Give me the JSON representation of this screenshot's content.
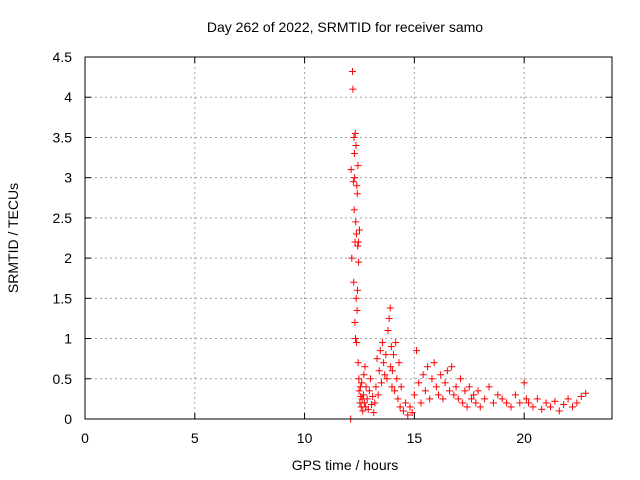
{
  "chart_data": {
    "type": "scatter",
    "title": "Day 262 of 2022, SRMTID for receiver samo",
    "xlabel": "GPS time / hours",
    "ylabel": "SRMTID / TECUs",
    "xlim": [
      0,
      24
    ],
    "ylim": [
      0,
      4.5
    ],
    "xticks": [
      0,
      5,
      10,
      15,
      20
    ],
    "yticks": [
      0,
      0.5,
      1,
      1.5,
      2,
      2.5,
      3,
      3.5,
      4,
      4.5
    ],
    "grid": true,
    "legend": "none",
    "marker": "plus",
    "color": "#ff0000",
    "series": [
      {
        "x": [
          12.1,
          12.12,
          12.15,
          12.18,
          12.2,
          12.22,
          12.24,
          12.25,
          12.26,
          12.27,
          12.28,
          12.29,
          12.3,
          12.31,
          12.32,
          12.33,
          12.34,
          12.35,
          12.36,
          12.37,
          12.38,
          12.39,
          12.4,
          12.41,
          12.42,
          12.43,
          12.44,
          12.45,
          12.46,
          12.47,
          12.48,
          12.5,
          12.52,
          12.54,
          12.56,
          12.58,
          12.6,
          12.62,
          12.65,
          12.68,
          12.7,
          12.72,
          12.75,
          12.78,
          12.8,
          12.85,
          12.9,
          12.95,
          13.0,
          13.05,
          13.1,
          13.15,
          13.2,
          13.25,
          13.3,
          13.35,
          13.4,
          13.45,
          13.5,
          13.55,
          13.6,
          13.65,
          13.7,
          13.75,
          13.8,
          13.85,
          13.9,
          13.92,
          13.95,
          13.98,
          14.0,
          14.05,
          14.1,
          14.15,
          14.2,
          14.25,
          14.3,
          14.35,
          14.4,
          14.5,
          14.6,
          14.7,
          14.8,
          14.9,
          15.0,
          15.1,
          15.2,
          15.3,
          15.4,
          15.5,
          15.6,
          15.7,
          15.8,
          15.9,
          16.0,
          16.1,
          16.2,
          16.3,
          16.4,
          16.5,
          16.6,
          16.7,
          16.8,
          16.9,
          17.0,
          17.1,
          17.2,
          17.3,
          17.4,
          17.5,
          17.6,
          17.7,
          17.8,
          17.9,
          18.0,
          18.2,
          18.4,
          18.6,
          18.8,
          19.0,
          19.2,
          19.4,
          19.6,
          19.8,
          20.0,
          20.1,
          20.2,
          20.4,
          20.6,
          20.8,
          21.0,
          21.2,
          21.4,
          21.6,
          21.8,
          22.0,
          22.2,
          22.4,
          22.6,
          22.8
        ],
        "y": [
          0.0,
          3.1,
          2.0,
          4.32,
          4.1,
          2.95,
          1.7,
          3.5,
          2.6,
          3.3,
          3.0,
          1.2,
          2.2,
          3.55,
          1.0,
          2.45,
          3.4,
          1.5,
          2.3,
          0.95,
          2.9,
          1.35,
          2.8,
          1.6,
          2.15,
          3.15,
          0.7,
          2.2,
          1.95,
          0.5,
          0.35,
          2.35,
          0.2,
          0.4,
          0.28,
          0.15,
          0.45,
          0.25,
          0.1,
          0.3,
          0.55,
          0.2,
          0.65,
          0.15,
          0.4,
          0.25,
          0.12,
          0.35,
          0.5,
          0.18,
          0.28,
          0.08,
          0.2,
          0.4,
          0.75,
          0.3,
          0.6,
          0.85,
          0.45,
          0.95,
          0.7,
          0.55,
          0.8,
          0.5,
          1.1,
          1.25,
          1.38,
          0.65,
          0.9,
          0.4,
          0.6,
          0.8,
          0.35,
          0.95,
          0.5,
          0.25,
          0.7,
          0.15,
          0.4,
          0.1,
          0.2,
          0.05,
          0.15,
          0.08,
          0.3,
          0.85,
          0.45,
          0.2,
          0.55,
          0.35,
          0.65,
          0.25,
          0.5,
          0.7,
          0.4,
          0.3,
          0.55,
          0.25,
          0.45,
          0.6,
          0.35,
          0.65,
          0.3,
          0.4,
          0.25,
          0.5,
          0.2,
          0.35,
          0.15,
          0.4,
          0.25,
          0.3,
          0.2,
          0.35,
          0.15,
          0.25,
          0.4,
          0.2,
          0.3,
          0.25,
          0.2,
          0.15,
          0.3,
          0.2,
          0.45,
          0.25,
          0.2,
          0.15,
          0.25,
          0.12,
          0.2,
          0.15,
          0.22,
          0.1,
          0.18,
          0.25,
          0.15,
          0.2,
          0.28,
          0.32
        ]
      }
    ]
  }
}
